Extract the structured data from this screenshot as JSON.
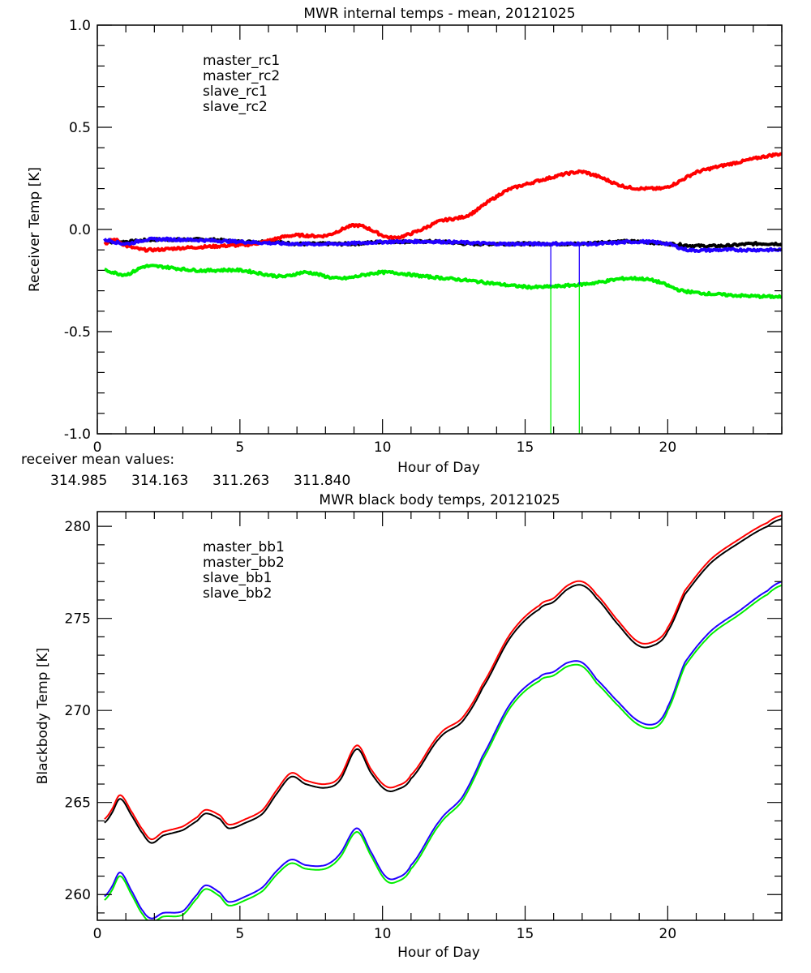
{
  "colors": {
    "black": "#000000",
    "red": "#ff0000",
    "blue": "#2200ff",
    "green": "#00ee00"
  },
  "mean_values_label": "receiver mean values:",
  "mean_values": [
    {
      "text": "314.985",
      "color": "#000000"
    },
    {
      "text": "314.163",
      "color": "#ff0000"
    },
    {
      "text": "311.263",
      "color": "#2200ff"
    },
    {
      "text": "311.840",
      "color": "#00ee00"
    }
  ],
  "chart_data": [
    {
      "type": "line",
      "title": "MWR internal temps - mean, 20121025",
      "xlabel": "Hour of Day",
      "ylabel": "Receiver Temp [K]",
      "xlim": [
        0,
        24
      ],
      "ylim": [
        -1.0,
        1.0
      ],
      "xticks": [
        0,
        5,
        10,
        15,
        20
      ],
      "xtick_labels": [
        "0",
        "5",
        "10",
        "15",
        "20"
      ],
      "yticks": [
        -1.0,
        -0.5,
        0.0,
        0.5,
        1.0
      ],
      "ytick_labels": [
        "-1.0",
        "-0.5",
        "0.0",
        "0.5",
        "1.0"
      ],
      "grid": false,
      "legend_position": "top-left",
      "series": [
        {
          "name": "master_rc1",
          "color": "#000000",
          "x": [
            0.25,
            1,
            2,
            3,
            4,
            5,
            6,
            7,
            8,
            9,
            10,
            11,
            12,
            13,
            14,
            15,
            16,
            17,
            18,
            19,
            20,
            21,
            22,
            23,
            24
          ],
          "y": [
            -0.06,
            -0.06,
            -0.05,
            -0.05,
            -0.05,
            -0.06,
            -0.06,
            -0.07,
            -0.07,
            -0.07,
            -0.06,
            -0.06,
            -0.06,
            -0.07,
            -0.07,
            -0.07,
            -0.07,
            -0.07,
            -0.06,
            -0.06,
            -0.07,
            -0.08,
            -0.08,
            -0.07,
            -0.07
          ]
        },
        {
          "name": "master_rc2",
          "color": "#ff0000",
          "x": [
            0.25,
            0.6,
            1.0,
            1.7,
            3.0,
            4.5,
            5.5,
            6.8,
            8.0,
            9.1,
            10.3,
            11.2,
            12.0,
            13.0,
            14.0,
            14.5,
            15.5,
            16.8,
            17.3,
            18.5,
            19.5,
            20.0,
            21.0,
            22.5,
            24.0
          ],
          "y": [
            -0.07,
            -0.05,
            -0.08,
            -0.1,
            -0.09,
            -0.08,
            -0.07,
            -0.03,
            -0.03,
            0.02,
            -0.04,
            -0.01,
            0.04,
            0.07,
            0.16,
            0.2,
            0.24,
            0.28,
            0.27,
            0.21,
            0.2,
            0.21,
            0.28,
            0.33,
            0.37
          ]
        },
        {
          "name": "slave_rc1",
          "color": "#2200ff",
          "x": [
            0.25,
            1.0,
            1.7,
            3.0,
            5.0,
            6.8,
            8.5,
            10.3,
            12.0,
            14.0,
            15.9,
            16.9,
            17.5,
            19.0,
            20.0,
            20.7,
            22.0,
            24.0
          ],
          "y": [
            -0.05,
            -0.07,
            -0.05,
            -0.05,
            -0.06,
            -0.07,
            -0.07,
            -0.06,
            -0.06,
            -0.07,
            -0.07,
            -0.07,
            -0.07,
            -0.06,
            -0.07,
            -0.1,
            -0.1,
            -0.1
          ]
        },
        {
          "name": "slave_rc2",
          "color": "#00ee00",
          "x": [
            0.25,
            1.0,
            1.7,
            3.5,
            5.0,
            6.5,
            7.3,
            8.5,
            10.0,
            11.5,
            13.0,
            15.0,
            15.9,
            16.9,
            17.5,
            18.5,
            19.5,
            20.5,
            22.0,
            24.0
          ],
          "y": [
            -0.2,
            -0.22,
            -0.18,
            -0.2,
            -0.2,
            -0.23,
            -0.21,
            -0.24,
            -0.21,
            -0.23,
            -0.25,
            -0.28,
            -0.28,
            -0.27,
            -0.26,
            -0.24,
            -0.25,
            -0.3,
            -0.32,
            -0.33
          ]
        }
      ],
      "spikes": [
        {
          "x": 15.9,
          "color": "#2200ff",
          "y_from": -0.07,
          "y_to": -0.28
        },
        {
          "x": 16.9,
          "color": "#2200ff",
          "y_from": -0.07,
          "y_to": -0.27
        },
        {
          "x": 15.9,
          "color": "#00ee00",
          "y_from": -0.28,
          "y_to": -1.0
        },
        {
          "x": 16.9,
          "color": "#00ee00",
          "y_from": -0.27,
          "y_to": -1.0
        }
      ]
    },
    {
      "type": "line",
      "title": "MWR black body temps, 20121025",
      "xlabel": "Hour of Day",
      "ylabel": "Blackbody Temp [K]",
      "xlim": [
        0,
        24
      ],
      "ylim": [
        258.6,
        280.8
      ],
      "xticks": [
        0,
        5,
        10,
        15,
        20
      ],
      "xtick_labels": [
        "0",
        "5",
        "10",
        "15",
        "20"
      ],
      "yticks": [
        260,
        265,
        270,
        275,
        280
      ],
      "ytick_labels": [
        "260",
        "265",
        "270",
        "275",
        "280"
      ],
      "grid": false,
      "legend_position": "top-left",
      "series": [
        {
          "name": "master_bb1",
          "color": "#000000",
          "x": [
            0.25,
            0.5,
            0.8,
            1.2,
            1.6,
            1.9,
            2.3,
            3.0,
            3.5,
            3.8,
            4.3,
            4.6,
            5.2,
            5.8,
            6.3,
            6.8,
            7.3,
            8.0,
            8.5,
            9.1,
            9.6,
            10.1,
            10.5,
            11.0,
            12.0,
            12.8,
            13.5,
            14.5,
            15.5,
            16.0,
            16.5,
            17.0,
            17.5,
            18.3,
            19.0,
            19.6,
            20.0,
            20.6,
            21.5,
            22.5,
            23.5,
            24.0
          ],
          "y": [
            263.9,
            264.4,
            265.2,
            264.3,
            263.3,
            262.8,
            263.2,
            263.5,
            264.0,
            264.4,
            264.1,
            263.6,
            263.9,
            264.4,
            265.5,
            266.4,
            266.0,
            265.8,
            266.2,
            267.9,
            266.6,
            265.7,
            265.7,
            266.3,
            268.5,
            269.4,
            271.2,
            274.0,
            275.5,
            275.9,
            276.6,
            276.8,
            276.1,
            274.6,
            273.5,
            273.6,
            274.3,
            276.3,
            278.0,
            279.1,
            280.0,
            280.4
          ]
        },
        {
          "name": "master_bb2",
          "color": "#ff0000",
          "x": [
            0.25,
            0.5,
            0.8,
            1.2,
            1.6,
            1.9,
            2.3,
            3.0,
            3.5,
            3.8,
            4.3,
            4.6,
            5.2,
            5.8,
            6.3,
            6.8,
            7.3,
            8.0,
            8.5,
            9.1,
            9.6,
            10.1,
            10.5,
            11.0,
            12.0,
            12.8,
            13.5,
            14.5,
            15.5,
            16.0,
            16.5,
            17.0,
            17.5,
            18.3,
            19.0,
            19.6,
            20.0,
            20.6,
            21.5,
            22.5,
            23.5,
            24.0
          ],
          "y": [
            264.1,
            264.6,
            265.4,
            264.5,
            263.5,
            263.0,
            263.4,
            263.7,
            264.2,
            264.6,
            264.3,
            263.8,
            264.1,
            264.6,
            265.7,
            266.6,
            266.2,
            266.0,
            266.4,
            268.1,
            266.8,
            265.9,
            265.9,
            266.5,
            268.7,
            269.6,
            271.4,
            274.2,
            275.7,
            276.1,
            276.8,
            277.0,
            276.3,
            274.8,
            273.7,
            273.8,
            274.5,
            276.5,
            278.2,
            279.3,
            280.2,
            280.6
          ]
        },
        {
          "name": "slave_bb1",
          "color": "#2200ff",
          "x": [
            0.25,
            0.5,
            0.8,
            1.2,
            1.6,
            1.9,
            2.3,
            3.0,
            3.5,
            3.8,
            4.3,
            4.6,
            5.2,
            5.8,
            6.3,
            6.8,
            7.3,
            8.0,
            8.5,
            9.1,
            9.6,
            10.1,
            10.5,
            11.0,
            12.0,
            12.8,
            13.5,
            14.5,
            15.5,
            16.0,
            16.5,
            17.0,
            17.5,
            18.3,
            19.0,
            19.6,
            20.0,
            20.6,
            21.5,
            22.5,
            23.5,
            24.0
          ],
          "y": [
            259.9,
            260.4,
            261.2,
            260.2,
            259.1,
            258.7,
            259.0,
            259.1,
            260.0,
            260.5,
            260.1,
            259.6,
            259.9,
            260.4,
            261.3,
            261.9,
            261.6,
            261.6,
            262.2,
            263.6,
            262.3,
            261.0,
            260.9,
            261.6,
            264.0,
            265.3,
            267.5,
            270.4,
            271.8,
            272.1,
            272.6,
            272.6,
            271.7,
            270.4,
            269.4,
            269.3,
            270.2,
            272.6,
            274.3,
            275.4,
            276.5,
            277.0
          ]
        },
        {
          "name": "slave_bb2",
          "color": "#00ee00",
          "x": [
            0.25,
            0.5,
            0.8,
            1.2,
            1.6,
            1.9,
            2.3,
            3.0,
            3.5,
            3.8,
            4.3,
            4.6,
            5.2,
            5.8,
            6.3,
            6.8,
            7.3,
            8.0,
            8.5,
            9.1,
            9.6,
            10.1,
            10.5,
            11.0,
            12.0,
            12.8,
            13.5,
            14.5,
            15.5,
            16.0,
            16.5,
            17.0,
            17.5,
            18.3,
            19.0,
            19.6,
            20.0,
            20.6,
            21.5,
            22.5,
            23.5,
            24.0
          ],
          "y": [
            259.7,
            260.2,
            261.0,
            260.0,
            258.9,
            258.5,
            258.8,
            258.9,
            259.8,
            260.3,
            259.9,
            259.4,
            259.7,
            260.2,
            261.1,
            261.7,
            261.4,
            261.4,
            262.0,
            263.4,
            262.1,
            260.8,
            260.7,
            261.4,
            263.8,
            265.1,
            267.3,
            270.2,
            271.6,
            271.9,
            272.4,
            272.4,
            271.5,
            270.2,
            269.2,
            269.1,
            270.0,
            272.4,
            274.1,
            275.2,
            276.3,
            276.8
          ]
        }
      ]
    }
  ]
}
